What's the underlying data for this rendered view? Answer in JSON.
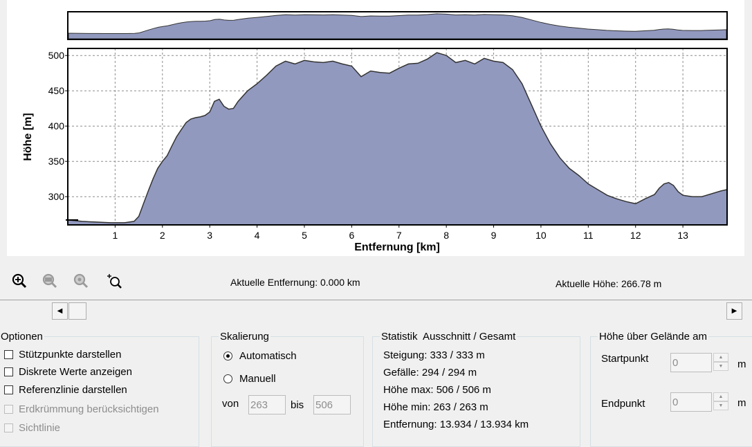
{
  "colors": {
    "fill": "#9299bf",
    "line": "#333333",
    "grid": "#8c8c8c",
    "frame": "#000000"
  },
  "chart_data": {
    "type": "area",
    "ylabel": "Höhe [m]",
    "xlabel": "Entfernung [km]",
    "xlim": [
      0,
      13.934
    ],
    "ylim": [
      260,
      510
    ],
    "xticks": [
      "1",
      "2",
      "3",
      "4",
      "5",
      "6",
      "7",
      "8",
      "9",
      "10",
      "11",
      "12",
      "13"
    ],
    "yticks": [
      "300",
      "350",
      "400",
      "450",
      "500"
    ],
    "grid": true,
    "series": [
      {
        "x": [
          0,
          0.3,
          0.6,
          0.9,
          1.2,
          1.4,
          1.5,
          1.6,
          1.7,
          1.8,
          1.9,
          2.0,
          2.1,
          2.2,
          2.3,
          2.4,
          2.5,
          2.6,
          2.7,
          2.8,
          2.9,
          3.0,
          3.1,
          3.2,
          3.3,
          3.4,
          3.5,
          3.6,
          3.8,
          4.0,
          4.2,
          4.4,
          4.6,
          4.8,
          5.0,
          5.2,
          5.4,
          5.6,
          5.8,
          6.0,
          6.2,
          6.4,
          6.6,
          6.8,
          7.0,
          7.2,
          7.4,
          7.6,
          7.8,
          8.0,
          8.2,
          8.4,
          8.6,
          8.8,
          9.0,
          9.2,
          9.4,
          9.6,
          9.8,
          10.0,
          10.2,
          10.4,
          10.6,
          10.8,
          11.0,
          11.2,
          11.4,
          11.6,
          11.8,
          12.0,
          12.2,
          12.4,
          12.5,
          12.6,
          12.7,
          12.8,
          12.9,
          13.0,
          13.1,
          13.2,
          13.4,
          13.6,
          13.8,
          13.934
        ],
        "y": [
          267,
          265,
          264,
          263,
          263,
          265,
          272,
          290,
          308,
          325,
          340,
          350,
          358,
          372,
          385,
          395,
          405,
          410,
          412,
          413,
          415,
          420,
          435,
          438,
          428,
          424,
          425,
          435,
          450,
          460,
          472,
          485,
          492,
          488,
          493,
          491,
          490,
          492,
          488,
          485,
          470,
          478,
          476,
          475,
          482,
          488,
          489,
          495,
          504,
          500,
          490,
          493,
          488,
          496,
          492,
          490,
          480,
          460,
          430,
          400,
          375,
          355,
          340,
          330,
          318,
          310,
          302,
          297,
          293,
          290,
          297,
          303,
          312,
          318,
          320,
          316,
          307,
          302,
          301,
          300,
          300,
          304,
          308,
          310
        ]
      }
    ]
  },
  "toolbar": {
    "icons": [
      "zoom-in-icon",
      "zoom-out-icon",
      "zoom-reset-icon",
      "zoom-select-icon"
    ]
  },
  "status": {
    "distance": "Aktuelle Entfernung: 0.000 km",
    "height": "Aktuelle Höhe: 266.78 m"
  },
  "scrollbar": {
    "left_arrow": "◀",
    "right_arrow": "▶"
  },
  "options": {
    "title": "Optionen",
    "items": [
      {
        "label": "Stützpunkte darstellen",
        "checked": false,
        "enabled": true
      },
      {
        "label": "Diskrete Werte anzeigen",
        "checked": false,
        "enabled": true
      },
      {
        "label": "Referenzlinie darstellen",
        "checked": false,
        "enabled": true
      },
      {
        "label": "Erdkrümmung berücksichtigen",
        "checked": false,
        "enabled": false
      },
      {
        "label": "Sichtlinie",
        "checked": false,
        "enabled": false
      }
    ]
  },
  "scaling": {
    "title": "Skalierung",
    "auto_label": "Automatisch",
    "manual_label": "Manuell",
    "selected": "Automatisch",
    "from_label": "von",
    "from_value": "263",
    "to_label": "bis",
    "to_value": "506"
  },
  "stats": {
    "title": "Statistik  Ausschnitt / Gesamt",
    "lines": [
      "Steigung: 333 / 333 m",
      "Gefälle: 294 / 294 m",
      "Höhe max: 506 / 506 m",
      "Höhe min: 263 / 263 m",
      "Entfernung: 13.934 / 13.934 km"
    ]
  },
  "height_above_ground": {
    "title": "Höhe über Gelände am",
    "start_label": "Startpunkt",
    "start_value": "0",
    "start_unit": "m",
    "end_label": "Endpunkt",
    "end_value": "0",
    "end_unit": "m"
  }
}
